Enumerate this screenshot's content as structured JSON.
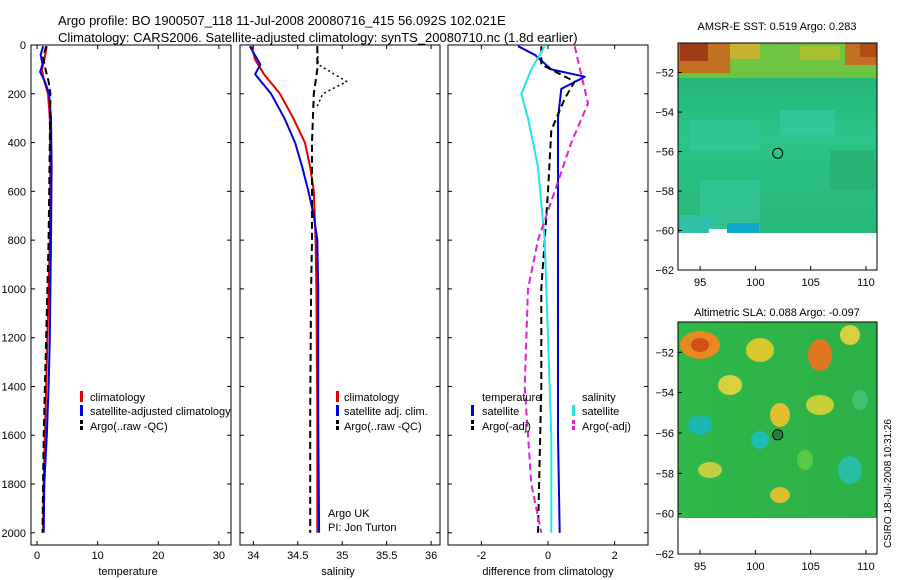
{
  "header": {
    "line1": "Argo profile: BO 1900507_118 11-Jul-2008 20080716_415 56.092S 102.021E",
    "line2": "Climatology: CARS2006. Satellite-adjusted climatology: synTS_20080710.nc (1.8d earlier)"
  },
  "side_credit": "CSIRO 18-Jul-2008 10:31:26",
  "colors": {
    "red": "#e00000",
    "blue": "#0000dd",
    "black": "#000000",
    "cyan": "#22e6e6",
    "magenta": "#e01ee0"
  },
  "chart_data": [
    {
      "type": "line",
      "id": "temperature-panel",
      "xlabel": "temperature",
      "xlim": [
        -1,
        32
      ],
      "ylim": [
        2050,
        0
      ],
      "y_reversed": true,
      "xticks": [
        0,
        10,
        20,
        30
      ],
      "yticks": [
        0,
        200,
        400,
        600,
        800,
        1000,
        1200,
        1400,
        1600,
        1800,
        2000
      ],
      "legend_position": "lower-right",
      "series": [
        {
          "name": "climatology",
          "color": "#e00000",
          "dash": "solid",
          "points": [
            [
              1.6,
              5
            ],
            [
              1.2,
              60
            ],
            [
              0.8,
              100
            ],
            [
              1.1,
              140
            ],
            [
              1.8,
              200
            ],
            [
              2.1,
              300
            ],
            [
              2.2,
              500
            ],
            [
              2.1,
              800
            ],
            [
              1.9,
              1000
            ],
            [
              1.7,
              1200
            ],
            [
              1.5,
              1400
            ],
            [
              1.3,
              1600
            ],
            [
              1.1,
              1800
            ],
            [
              1.0,
              2000
            ]
          ]
        },
        {
          "name": "satellite-adjusted climatology",
          "color": "#0000dd",
          "dash": "solid",
          "points": [
            [
              1.0,
              5
            ],
            [
              0.6,
              40
            ],
            [
              0.9,
              80
            ],
            [
              0.5,
              110
            ],
            [
              1.3,
              150
            ],
            [
              2.0,
              200
            ],
            [
              2.3,
              300
            ],
            [
              2.4,
              500
            ],
            [
              2.3,
              800
            ],
            [
              2.2,
              1000
            ],
            [
              2.1,
              1200
            ],
            [
              1.9,
              1400
            ],
            [
              1.6,
              1600
            ],
            [
              1.2,
              1800
            ],
            [
              1.1,
              2000
            ]
          ]
        },
        {
          "name": "Argo(..raw -QC)",
          "color": "#000000",
          "dash": "dashed",
          "points": [
            [
              1.5,
              5
            ],
            [
              1.0,
              50
            ],
            [
              1.4,
              100
            ],
            [
              1.9,
              150
            ],
            [
              2.2,
              200
            ],
            [
              2.1,
              400
            ],
            [
              2.0,
              600
            ],
            [
              1.9,
              800
            ],
            [
              1.7,
              1000
            ],
            [
              1.5,
              1200
            ],
            [
              1.3,
              1400
            ],
            [
              1.1,
              1600
            ],
            [
              1.0,
              1800
            ],
            [
              0.9,
              2000
            ]
          ]
        }
      ]
    },
    {
      "type": "line",
      "id": "salinity-panel",
      "xlabel": "salinity",
      "xlim": [
        33.85,
        36.1
      ],
      "ylim": [
        2050,
        0
      ],
      "y_reversed": true,
      "xticks": [
        34,
        34.5,
        35,
        35.5,
        36
      ],
      "legend_position": "lower-right",
      "annotation": [
        "Argo UK",
        "PI: Jon Turton"
      ],
      "series": [
        {
          "name": "climatology",
          "color": "#e00000",
          "dash": "solid",
          "points": [
            [
              33.98,
              5
            ],
            [
              34.02,
              60
            ],
            [
              34.12,
              120
            ],
            [
              34.3,
              200
            ],
            [
              34.45,
              300
            ],
            [
              34.58,
              400
            ],
            [
              34.64,
              500
            ],
            [
              34.68,
              600
            ],
            [
              34.7,
              800
            ],
            [
              34.71,
              1000
            ],
            [
              34.72,
              1500
            ],
            [
              34.72,
              2000
            ]
          ]
        },
        {
          "name": "satellite adj. clim.",
          "color": "#0000dd",
          "dash": "solid",
          "points": [
            [
              33.96,
              5
            ],
            [
              34.08,
              80
            ],
            [
              34.02,
              120
            ],
            [
              34.2,
              200
            ],
            [
              34.35,
              300
            ],
            [
              34.47,
              400
            ],
            [
              34.55,
              500
            ],
            [
              34.62,
              600
            ],
            [
              34.68,
              700
            ],
            [
              34.72,
              800
            ],
            [
              34.73,
              1000
            ],
            [
              34.73,
              1500
            ],
            [
              34.74,
              2000
            ]
          ]
        },
        {
          "name": "Argo(..raw -QC)",
          "color": "#000000",
          "dash": "dashed",
          "points": [
            [
              34.72,
              5
            ],
            [
              34.72,
              100
            ],
            [
              34.68,
              200
            ],
            [
              34.67,
              300
            ],
            [
              34.66,
              400
            ],
            [
              34.66,
              500
            ],
            [
              34.66,
              800
            ],
            [
              34.65,
              1000
            ],
            [
              34.64,
              1500
            ],
            [
              34.64,
              2000
            ]
          ]
        },
        {
          "name": "",
          "color": "#000000",
          "dash": "dotted",
          "points": [
            [
              34.72,
              5
            ],
            [
              34.73,
              80
            ],
            [
              35.05,
              150
            ],
            [
              34.78,
              200
            ],
            [
              34.72,
              250
            ]
          ]
        }
      ]
    },
    {
      "type": "line",
      "id": "difference-panel",
      "xlabel": "difference from climatology",
      "xlim": [
        -3,
        3
      ],
      "ylim": [
        2050,
        0
      ],
      "y_reversed": true,
      "xticks": [
        -2,
        0,
        2
      ],
      "legend_position": "lower-right",
      "legend_groups": [
        "temperature",
        "salinity"
      ],
      "series": [
        {
          "name": "temperature satellite",
          "color": "#0000dd",
          "dash": "solid",
          "points": [
            [
              -0.9,
              5
            ],
            [
              -0.4,
              40
            ],
            [
              0.1,
              100
            ],
            [
              1.1,
              130
            ],
            [
              0.4,
              180
            ],
            [
              0.3,
              300
            ],
            [
              0.3,
              500
            ],
            [
              0.3,
              800
            ],
            [
              0.3,
              1200
            ],
            [
              0.3,
              1600
            ],
            [
              0.35,
              2000
            ]
          ]
        },
        {
          "name": "temperature Argo(-adj)",
          "color": "#000000",
          "dash": "dashed",
          "points": [
            [
              -0.2,
              5
            ],
            [
              -0.2,
              80
            ],
            [
              0.8,
              150
            ],
            [
              0.5,
              220
            ],
            [
              0.1,
              350
            ],
            [
              0.0,
              600
            ],
            [
              -0.1,
              800
            ],
            [
              -0.2,
              1000
            ],
            [
              -0.2,
              1400
            ],
            [
              -0.3,
              2000
            ]
          ]
        },
        {
          "name": "salinity satellite",
          "color": "#22e6e6",
          "dash": "solid",
          "points": [
            [
              -0.1,
              5
            ],
            [
              -0.5,
              100
            ],
            [
              -0.8,
              200
            ],
            [
              -0.6,
              300
            ],
            [
              -0.3,
              500
            ],
            [
              -0.1,
              800
            ],
            [
              0.0,
              1200
            ],
            [
              0.1,
              1600
            ],
            [
              0.1,
              2000
            ]
          ]
        },
        {
          "name": "salinity Argo(-adj)",
          "color": "#e01ee0",
          "dash": "dashed",
          "points": [
            [
              0.8,
              5
            ],
            [
              1.2,
              240
            ],
            [
              0.7,
              400
            ],
            [
              0.2,
              600
            ],
            [
              -0.3,
              800
            ],
            [
              -0.6,
              1000
            ],
            [
              -0.7,
              1400
            ],
            [
              -0.5,
              1800
            ],
            [
              -0.2,
              2000
            ]
          ]
        }
      ]
    },
    {
      "type": "heatmap",
      "id": "sst-map",
      "title": "AMSR-E SST: 0.519 Argo: 0.283",
      "xlim": [
        93,
        111
      ],
      "ylim": [
        -62,
        -50.5
      ],
      "xticks": [
        95,
        100,
        105,
        110
      ],
      "yticks": [
        -52,
        -54,
        -56,
        -58,
        -60,
        -62
      ],
      "argo_location": [
        102.02,
        -56.09
      ],
      "data_southern_limit": -60
    },
    {
      "type": "heatmap",
      "id": "sla-map",
      "title": "Altimetric SLA: 0.088 Argo: -0.097",
      "xlim": [
        93,
        111
      ],
      "ylim": [
        -62,
        -50.5
      ],
      "xticks": [
        95,
        100,
        105,
        110
      ],
      "yticks": [
        -52,
        -54,
        -56,
        -58,
        -60,
        -62
      ],
      "argo_location": [
        102.02,
        -56.09
      ],
      "data_southern_limit": -60
    }
  ]
}
